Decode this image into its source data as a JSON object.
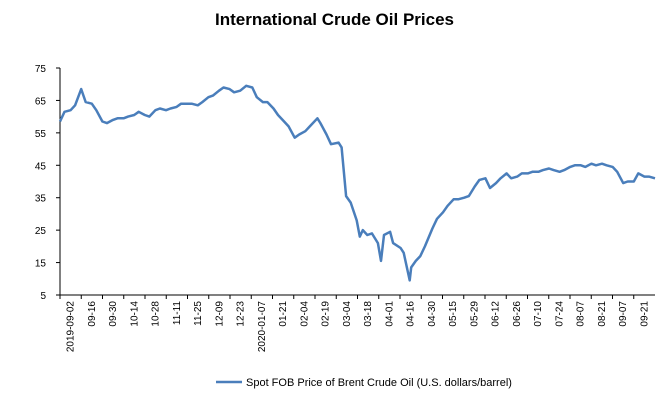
{
  "chart_data": {
    "type": "line",
    "title": "International Crude Oil Prices",
    "xlabel": "",
    "ylabel": "",
    "ylim": [
      5,
      75
    ],
    "yticks": [
      5,
      15,
      25,
      35,
      45,
      55,
      65,
      75
    ],
    "xtick_labels": [
      "2019-09-02",
      "09-16",
      "09-30",
      "10-14",
      "10-28",
      "11-11",
      "11-25",
      "12-09",
      "12-23",
      "2020-01-07",
      "01-21",
      "02-04",
      "02-19",
      "03-04",
      "03-18",
      "04-01",
      "04-16",
      "04-30",
      "05-15",
      "05-29",
      "06-12",
      "06-26",
      "07-10",
      "07-24",
      "08-07",
      "08-21",
      "09-07",
      "09-21"
    ],
    "x": [
      "2019-09-02",
      "2019-09-05",
      "2019-09-09",
      "2019-09-12",
      "2019-09-16",
      "2019-09-19",
      "2019-09-23",
      "2019-09-26",
      "2019-09-30",
      "2019-10-03",
      "2019-10-07",
      "2019-10-10",
      "2019-10-14",
      "2019-10-17",
      "2019-10-21",
      "2019-10-24",
      "2019-10-28",
      "2019-10-31",
      "2019-11-04",
      "2019-11-07",
      "2019-11-11",
      "2019-11-14",
      "2019-11-18",
      "2019-11-21",
      "2019-11-25",
      "2019-11-28",
      "2019-12-02",
      "2019-12-05",
      "2019-12-09",
      "2019-12-12",
      "2019-12-16",
      "2019-12-19",
      "2019-12-23",
      "2019-12-26",
      "2019-12-30",
      "2020-01-03",
      "2020-01-07",
      "2020-01-10",
      "2020-01-14",
      "2020-01-17",
      "2020-01-21",
      "2020-01-24",
      "2020-01-28",
      "2020-01-31",
      "2020-02-04",
      "2020-02-07",
      "2020-02-11",
      "2020-02-14",
      "2020-02-19",
      "2020-02-21",
      "2020-02-25",
      "2020-02-28",
      "2020-03-04",
      "2020-03-06",
      "2020-03-09",
      "2020-03-12",
      "2020-03-16",
      "2020-03-18",
      "2020-03-20",
      "2020-03-23",
      "2020-03-26",
      "2020-03-30",
      "2020-04-01",
      "2020-04-03",
      "2020-04-07",
      "2020-04-09",
      "2020-04-14",
      "2020-04-16",
      "2020-04-20",
      "2020-04-21",
      "2020-04-24",
      "2020-04-27",
      "2020-04-30",
      "2020-05-05",
      "2020-05-08",
      "2020-05-12",
      "2020-05-15",
      "2020-05-19",
      "2020-05-22",
      "2020-05-26",
      "2020-05-29",
      "2020-06-02",
      "2020-06-05",
      "2020-06-09",
      "2020-06-12",
      "2020-06-16",
      "2020-06-19",
      "2020-06-23",
      "2020-06-26",
      "2020-06-30",
      "2020-07-03",
      "2020-07-07",
      "2020-07-10",
      "2020-07-14",
      "2020-07-17",
      "2020-07-21",
      "2020-07-24",
      "2020-07-28",
      "2020-07-31",
      "2020-08-04",
      "2020-08-07",
      "2020-08-11",
      "2020-08-14",
      "2020-08-18",
      "2020-08-21",
      "2020-08-25",
      "2020-08-28",
      "2020-09-01",
      "2020-09-04",
      "2020-09-08",
      "2020-09-11",
      "2020-09-15",
      "2020-09-18",
      "2020-09-22",
      "2020-09-25",
      "2020-09-29"
    ],
    "series": [
      {
        "name": "Spot FOB Price of Brent Crude Oil (U.S. dollars/barrel)",
        "color": "#4a7ebb",
        "values": [
          58.5,
          61.5,
          62.0,
          63.5,
          68.5,
          64.5,
          64.0,
          62.0,
          58.5,
          58.0,
          59.0,
          59.5,
          59.5,
          60.0,
          60.5,
          61.5,
          60.5,
          60.0,
          62.0,
          62.5,
          62.0,
          62.5,
          63.0,
          64.0,
          64.0,
          64.0,
          63.5,
          64.5,
          66.0,
          66.5,
          68.0,
          69.0,
          68.5,
          67.5,
          68.0,
          69.5,
          69.0,
          66.0,
          64.5,
          64.5,
          62.5,
          60.5,
          58.5,
          57.0,
          53.5,
          54.5,
          55.5,
          57.0,
          59.5,
          58.0,
          54.5,
          51.5,
          52.0,
          50.5,
          35.5,
          33.5,
          28.0,
          23.0,
          25.0,
          23.5,
          24.0,
          21.0,
          15.5,
          23.5,
          24.5,
          21.0,
          19.5,
          18.0,
          9.5,
          13.5,
          15.5,
          17.0,
          20.0,
          25.5,
          28.5,
          30.5,
          32.5,
          34.5,
          34.5,
          35.0,
          35.5,
          38.5,
          40.5,
          41.0,
          38.0,
          39.5,
          41.0,
          42.5,
          41.0,
          41.5,
          42.5,
          42.5,
          43.0,
          43.0,
          43.5,
          44.0,
          43.5,
          43.0,
          43.5,
          44.5,
          45.0,
          45.0,
          44.5,
          45.5,
          45.0,
          45.5,
          45.0,
          44.5,
          43.0,
          39.5,
          40.0,
          40.0,
          42.5,
          41.5,
          41.5,
          41.0
        ]
      }
    ],
    "grid": false,
    "legend_position": "bottom-center"
  }
}
